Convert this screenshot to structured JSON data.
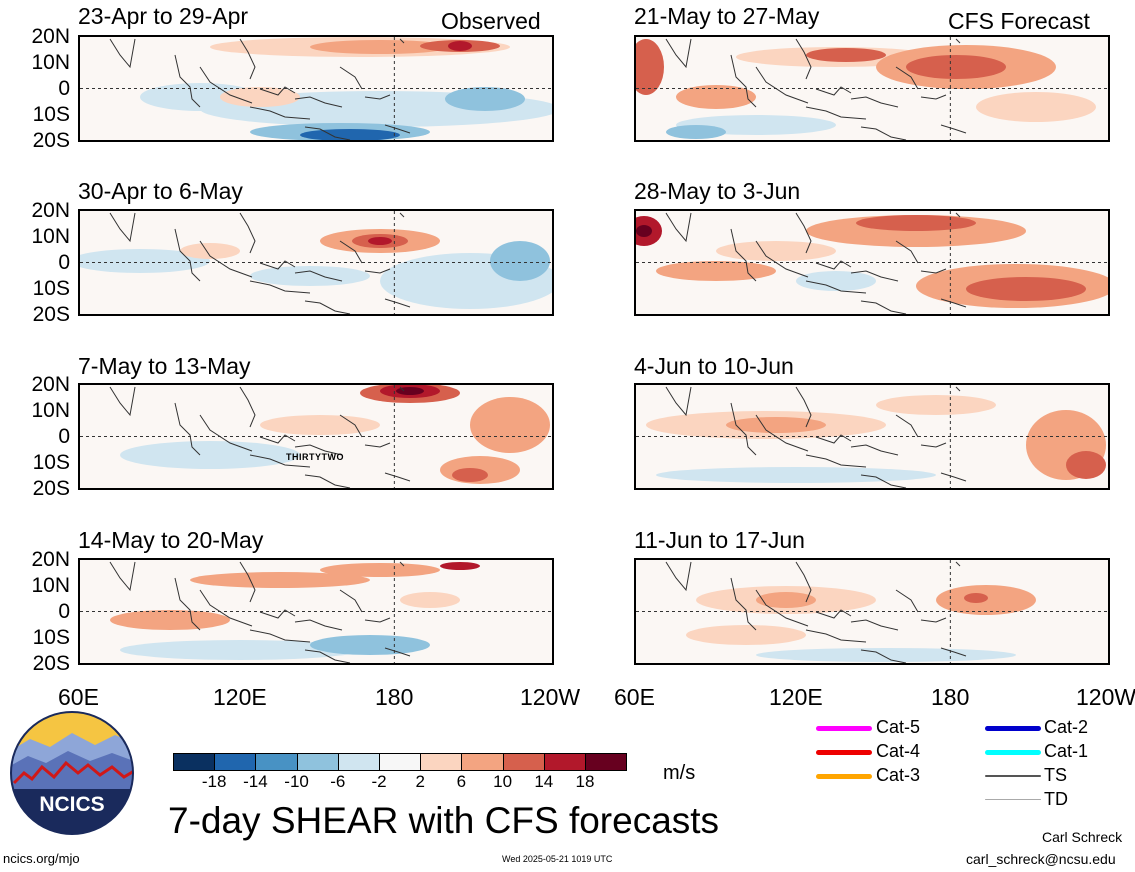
{
  "headers": {
    "observed": "Observed",
    "forecast": "CFS Forecast"
  },
  "panels": {
    "observed": [
      {
        "title": "23-Apr to 29-Apr"
      },
      {
        "title": "30-Apr to 6-May"
      },
      {
        "title": "7-May to 13-May"
      },
      {
        "title": "14-May to 20-May"
      }
    ],
    "forecast": [
      {
        "title": "21-May to 27-May"
      },
      {
        "title": "28-May to 3-Jun"
      },
      {
        "title": "4-Jun to 10-Jun"
      },
      {
        "title": "11-Jun to 17-Jun"
      }
    ]
  },
  "lat_labels": [
    "20N",
    "10N",
    "0",
    "10S",
    "20S"
  ],
  "lon_labels": {
    "left": [
      "60E",
      "120E",
      "180",
      "120W"
    ],
    "right": [
      "60E",
      "120E",
      "180",
      "120W"
    ]
  },
  "storm_label": "THIRTYTWO",
  "colorbar": {
    "ticks": [
      "-18",
      "-14",
      "-10",
      "-6",
      "-2",
      "2",
      "6",
      "10",
      "14",
      "18"
    ],
    "colors": [
      "#0a3060",
      "#2066ae",
      "#4892c4",
      "#8fc2dd",
      "#d0e5f0",
      "#f7f7f7",
      "#fbd5c0",
      "#f3a481",
      "#d6604d",
      "#b2182b",
      "#67001f"
    ],
    "units": "m/s"
  },
  "title": "7-day SHEAR with CFS forecasts",
  "legend": [
    {
      "label": "Cat-5",
      "color": "#ff00ff"
    },
    {
      "label": "Cat-4",
      "color": "#ee0000"
    },
    {
      "label": "Cat-3",
      "color": "#ffa500"
    },
    {
      "label": "Cat-2",
      "color": "#0000cc"
    },
    {
      "label": "Cat-1",
      "color": "#00ffff"
    },
    {
      "label": "TS",
      "color": "#555555"
    },
    {
      "label": "TD",
      "color": "#aaaaaa"
    }
  ],
  "logo": {
    "text": "NCICS"
  },
  "footer": {
    "url": "ncics.org/mjo",
    "date": "Wed 2025-05-21 1019 UTC",
    "author": "Carl Schreck",
    "email": "carl_schreck@ncsu.edu"
  }
}
